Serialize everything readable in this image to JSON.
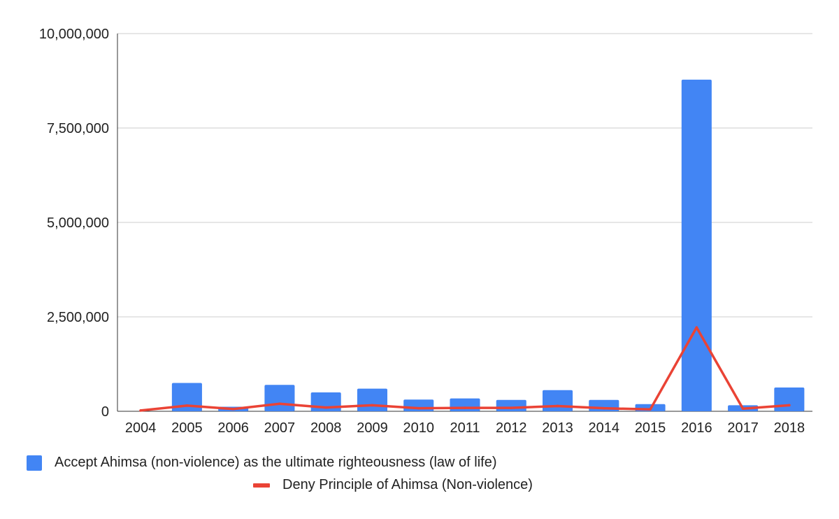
{
  "chart_data": {
    "type": "bar",
    "title": "",
    "xlabel": "",
    "ylabel": "",
    "categories": [
      "2004",
      "2005",
      "2006",
      "2007",
      "2008",
      "2009",
      "2010",
      "2011",
      "2012",
      "2013",
      "2014",
      "2015",
      "2016",
      "2017",
      "2018"
    ],
    "ylim": [
      0,
      10000000
    ],
    "yticks": [
      0,
      2500000,
      5000000,
      7500000,
      10000000
    ],
    "ytick_labels": [
      "0",
      "2,500,000",
      "5,000,000",
      "7,500,000",
      "10,000,000"
    ],
    "grid": true,
    "legend_position": "bottom",
    "series": [
      {
        "name": "Accept Ahimsa (non-violence) as the ultimate righteousness (law of life)",
        "type": "bar",
        "color": "#4285F4",
        "values": [
          0,
          750000,
          120000,
          700000,
          500000,
          600000,
          310000,
          340000,
          300000,
          560000,
          300000,
          190000,
          8780000,
          160000,
          630000
        ]
      },
      {
        "name": "Deny Principle of Ahimsa (Non-violence)",
        "type": "line",
        "color": "#EA4335",
        "values": [
          20000,
          150000,
          60000,
          200000,
          100000,
          160000,
          80000,
          90000,
          90000,
          140000,
          80000,
          50000,
          2220000,
          70000,
          160000
        ]
      }
    ]
  }
}
